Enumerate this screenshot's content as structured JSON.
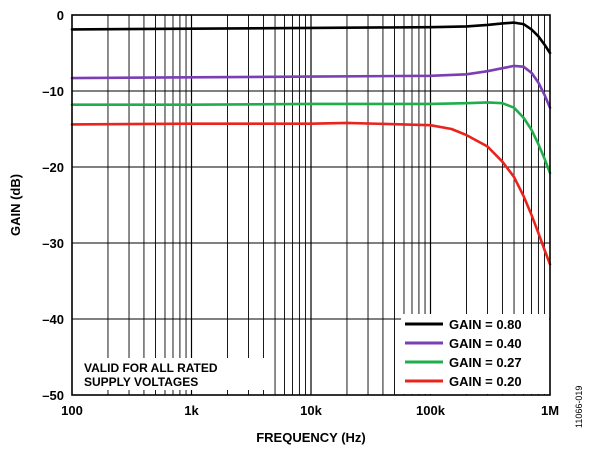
{
  "chart_data": {
    "type": "line",
    "xlabel": "FREQUENCY (Hz)",
    "ylabel": "GAIN (dB)",
    "x_scale": "log",
    "xlim": [
      100,
      1000000
    ],
    "ylim": [
      -50,
      0
    ],
    "grid": true,
    "x_ticks": [
      {
        "value": 100,
        "label": "100"
      },
      {
        "value": 1000,
        "label": "1k"
      },
      {
        "value": 10000,
        "label": "10k"
      },
      {
        "value": 100000,
        "label": "100k"
      },
      {
        "value": 1000000,
        "label": "1M"
      }
    ],
    "y_ticks": [
      {
        "value": 0,
        "label": "0"
      },
      {
        "value": -10,
        "label": "–10"
      },
      {
        "value": -20,
        "label": "–20"
      },
      {
        "value": -30,
        "label": "–30"
      },
      {
        "value": -40,
        "label": "–40"
      },
      {
        "value": -50,
        "label": "–50"
      }
    ],
    "legend_position": "bottom-right",
    "annotation": [
      "VALID FOR ALL RATED",
      "SUPPLY VOLTAGES"
    ],
    "figure_id": "11066-019",
    "series": [
      {
        "name": "GAIN = 0.80",
        "color": "#000000",
        "points": [
          [
            100,
            -1.9
          ],
          [
            1000,
            -1.8
          ],
          [
            10000,
            -1.7
          ],
          [
            100000,
            -1.6
          ],
          [
            200000,
            -1.5
          ],
          [
            300000,
            -1.3
          ],
          [
            400000,
            -1.1
          ],
          [
            500000,
            -1.0
          ],
          [
            600000,
            -1.2
          ],
          [
            700000,
            -1.9
          ],
          [
            800000,
            -2.8
          ],
          [
            900000,
            -3.9
          ],
          [
            1000000,
            -5.0
          ]
        ]
      },
      {
        "name": "GAIN = 0.40",
        "color": "#7b3fb5",
        "points": [
          [
            100,
            -8.3
          ],
          [
            1000,
            -8.2
          ],
          [
            10000,
            -8.1
          ],
          [
            100000,
            -8.0
          ],
          [
            200000,
            -7.8
          ],
          [
            300000,
            -7.4
          ],
          [
            400000,
            -7.0
          ],
          [
            500000,
            -6.7
          ],
          [
            600000,
            -6.8
          ],
          [
            700000,
            -7.6
          ],
          [
            800000,
            -8.9
          ],
          [
            900000,
            -10.5
          ],
          [
            1000000,
            -12.2
          ]
        ]
      },
      {
        "name": "GAIN = 0.27",
        "color": "#1fae4b",
        "points": [
          [
            100,
            -11.8
          ],
          [
            1000,
            -11.8
          ],
          [
            10000,
            -11.7
          ],
          [
            100000,
            -11.7
          ],
          [
            200000,
            -11.6
          ],
          [
            300000,
            -11.5
          ],
          [
            400000,
            -11.6
          ],
          [
            500000,
            -12.2
          ],
          [
            600000,
            -13.5
          ],
          [
            700000,
            -15.1
          ],
          [
            800000,
            -17.0
          ],
          [
            900000,
            -18.9
          ],
          [
            1000000,
            -20.8
          ]
        ]
      },
      {
        "name": "GAIN = 0.20",
        "color": "#e8241d",
        "points": [
          [
            100,
            -14.4
          ],
          [
            1000,
            -14.3
          ],
          [
            10000,
            -14.3
          ],
          [
            20000,
            -14.2
          ],
          [
            100000,
            -14.5
          ],
          [
            150000,
            -15.0
          ],
          [
            200000,
            -15.8
          ],
          [
            300000,
            -17.3
          ],
          [
            400000,
            -19.3
          ],
          [
            500000,
            -21.3
          ],
          [
            600000,
            -23.8
          ],
          [
            700000,
            -26.3
          ],
          [
            800000,
            -28.7
          ],
          [
            900000,
            -30.9
          ],
          [
            1000000,
            -32.8
          ]
        ]
      }
    ]
  }
}
